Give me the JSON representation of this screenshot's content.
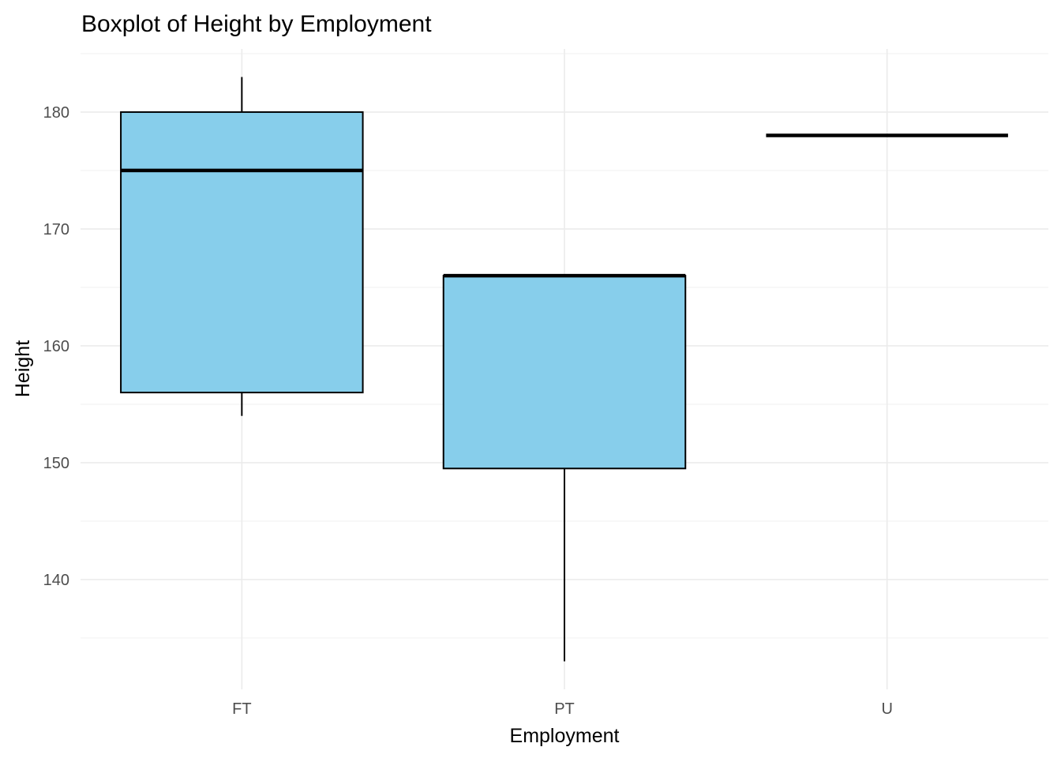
{
  "chart_data": {
    "type": "boxplot",
    "title": "Boxplot of Height by Employment",
    "xlabel": "Employment",
    "ylabel": "Height",
    "categories": [
      "FT",
      "PT",
      "U"
    ],
    "boxes": [
      {
        "category": "FT",
        "min": 154,
        "q1": 156,
        "median": 175,
        "q3": 180,
        "max": 183
      },
      {
        "category": "PT",
        "min": 133,
        "q1": 149.5,
        "median": 166,
        "q3": 166,
        "max": 166
      },
      {
        "category": "U",
        "min": 178,
        "q1": 178,
        "median": 178,
        "q3": 178,
        "max": 178
      }
    ],
    "ylim": [
      130.6,
      185.4
    ],
    "yticks": [
      140,
      150,
      160,
      170,
      180
    ],
    "ytick_labels": [
      "140",
      "150",
      "160",
      "170",
      "180"
    ],
    "grid": true,
    "box_fill": "#87CEEB",
    "line_color": "#000000"
  }
}
